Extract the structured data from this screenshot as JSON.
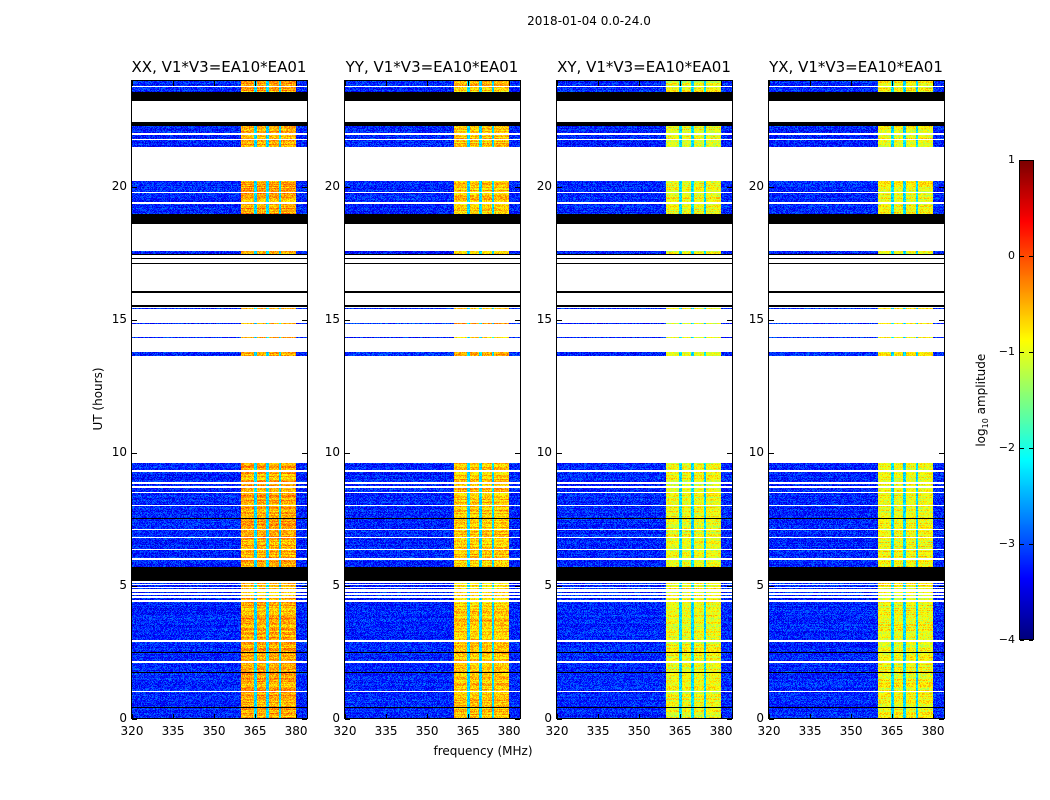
{
  "suptitle": "2018-01-04 0.0-24.0",
  "xlabel": "frequency (MHz)",
  "ylabel": "UT (hours)",
  "colorbar": {
    "label_pre": "log",
    "label_sub": "10",
    "label_post": " amplitude",
    "range": [
      -4,
      1
    ],
    "ticks": [
      "1",
      "0",
      "−1",
      "−2",
      "−3",
      "−4"
    ],
    "tick_values": [
      1,
      0,
      -1,
      -2,
      -3,
      -4
    ],
    "colormap": "jet"
  },
  "chart_data": {
    "type": "heatmap",
    "x_range_mhz": [
      320,
      384
    ],
    "y_range_hours": [
      0,
      24
    ],
    "xticks": [
      320,
      335,
      350,
      365,
      380
    ],
    "yticks": [
      0,
      5,
      10,
      15,
      20
    ],
    "xtick_labels": [
      "320",
      "335",
      "350",
      "365",
      "380"
    ],
    "ytick_labels": [
      "0",
      "5",
      "10",
      "15",
      "20"
    ],
    "background_log_amp": -3.2,
    "bright_band_mhz": [
      360,
      380
    ],
    "band_gaps_mhz": [
      365.2,
      369.6,
      374.2
    ],
    "data_intervals_hours": [
      [
        0,
        4.65
      ],
      [
        5.7,
        9.6
      ],
      [
        13.65,
        13.8
      ],
      [
        17.5,
        17.6
      ],
      [
        19.0,
        20.25
      ],
      [
        21.5,
        22.3
      ],
      [
        23.6,
        24
      ],
      [
        4.7,
        4.75
      ],
      [
        4.85,
        4.9
      ],
      [
        4.95,
        5.0
      ],
      [
        5.05,
        5.1
      ],
      [
        14.3,
        14.35
      ],
      [
        14.85,
        14.9
      ],
      [
        15.4,
        15.45
      ]
    ],
    "flagged_intervals_hours": [
      [
        5.15,
        5.7
      ],
      [
        18.6,
        19.0
      ],
      [
        22.3,
        22.45
      ],
      [
        23.25,
        23.6
      ],
      [
        0.38,
        0.42
      ],
      [
        1.68,
        1.72
      ],
      [
        2.45,
        2.5
      ],
      [
        3.3,
        3.33
      ],
      [
        7.5,
        7.53
      ],
      [
        15.5,
        15.55
      ],
      [
        16.0,
        16.1
      ],
      [
        17.1,
        17.15
      ],
      [
        17.3,
        17.35
      ],
      [
        17.45,
        17.5
      ]
    ],
    "blank_lines_hours": [
      1.0,
      2.1,
      2.9,
      4.4,
      4.55,
      6.0,
      6.35,
      6.8,
      7.1,
      8.0,
      8.5,
      8.7,
      8.85,
      9.3,
      19.4,
      19.8,
      21.8,
      22.0,
      23.8
    ],
    "panels": [
      {
        "title": "XX, V1*V3=EA10*EA01",
        "band_log_amp": -0.45
      },
      {
        "title": "YY, V1*V3=EA10*EA01",
        "band_log_amp": -0.6
      },
      {
        "title": "XY, V1*V3=EA10*EA01",
        "band_log_amp": -0.95
      },
      {
        "title": "YX, V1*V3=EA10*EA01",
        "band_log_amp": -0.9
      }
    ]
  }
}
